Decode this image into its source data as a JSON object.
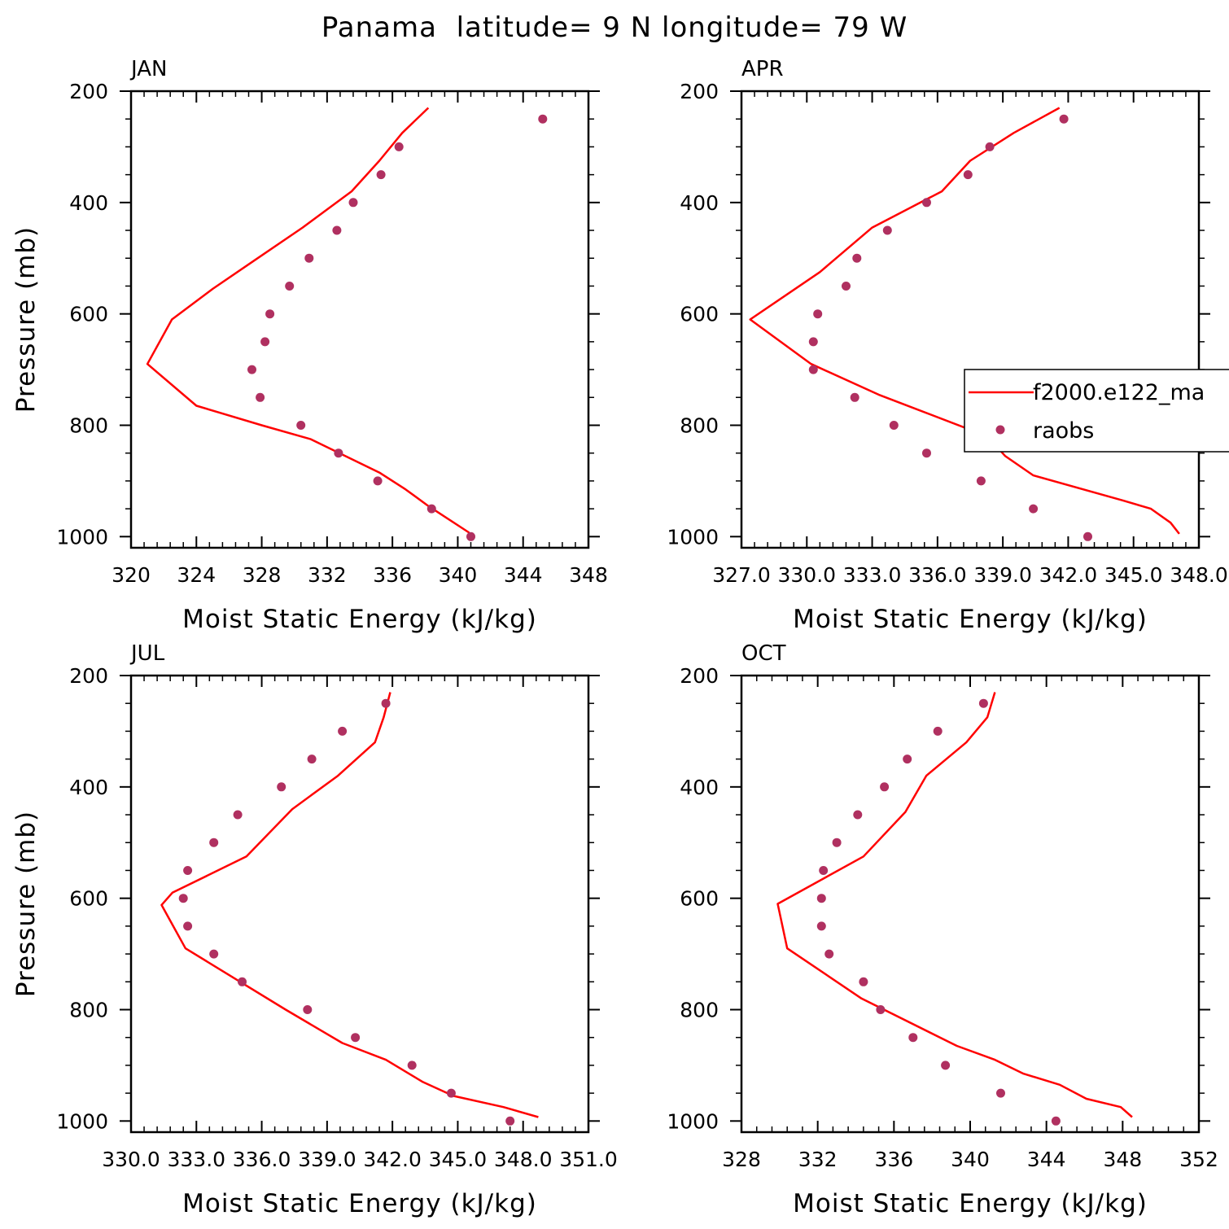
{
  "figure": {
    "title": "Panama  latitude= 9 N longitude= 79 W"
  },
  "colors": {
    "model_line": "#ff0000",
    "obs_marker": "#b03060",
    "axes": "#000000"
  },
  "legend": {
    "placement": "inside APR panel, right edge (clipped)",
    "entries": [
      {
        "label": "f2000.e122_ma",
        "kind": "line"
      },
      {
        "label": "raobs",
        "kind": "marker"
      }
    ]
  },
  "chart_data": [
    {
      "type": "line",
      "panel_title": "JAN",
      "xlabel": "Moist Static Energy (kJ/kg)",
      "ylabel": "Pressure (mb)",
      "xlim": [
        320,
        348
      ],
      "ylim": [
        1020,
        200
      ],
      "xticks": [
        320,
        324,
        328,
        332,
        336,
        340,
        344,
        348
      ],
      "xtick_labels": [
        "320",
        "324",
        "328",
        "332",
        "336",
        "340",
        "344",
        "348"
      ],
      "yticks": [
        200,
        400,
        600,
        800,
        1000
      ],
      "ytick_labels": [
        "200",
        "400",
        "600",
        "800",
        "1000"
      ],
      "series": [
        {
          "kind": "line",
          "x": [
            338.2,
            336.6,
            335.2,
            333.5,
            330.5,
            327.5,
            325.0,
            322.5,
            321.0,
            324.0,
            328.0,
            331.0,
            335.2,
            336.8,
            338.2,
            340.7
          ],
          "y": [
            230,
            275,
            325,
            380,
            445,
            505,
            555,
            610,
            690,
            765,
            800,
            825,
            885,
            915,
            945,
            993
          ]
        },
        {
          "kind": "marker",
          "x": [
            345.2,
            336.4,
            335.3,
            333.6,
            332.6,
            330.9,
            329.7,
            328.5,
            328.2,
            327.4,
            327.9,
            330.4,
            332.7,
            335.1,
            338.4,
            340.8
          ],
          "y": [
            250,
            300,
            350,
            400,
            450,
            500,
            550,
            600,
            650,
            700,
            750,
            800,
            850,
            900,
            950,
            1000
          ]
        }
      ]
    },
    {
      "type": "line",
      "panel_title": "APR",
      "xlabel": "Moist Static Energy (kJ/kg)",
      "ylabel": "",
      "xlim": [
        327,
        348
      ],
      "ylim": [
        1020,
        200
      ],
      "xticks": [
        327,
        330,
        333,
        336,
        339,
        342,
        345,
        348
      ],
      "xtick_labels": [
        "327.0",
        "330.0",
        "333.0",
        "336.0",
        "339.0",
        "342.0",
        "345.0",
        "348.0"
      ],
      "yticks": [
        200,
        400,
        600,
        800,
        1000
      ],
      "ytick_labels": [
        "200",
        "400",
        "600",
        "800",
        "1000"
      ],
      "series": [
        {
          "kind": "line",
          "x": [
            341.6,
            339.5,
            337.5,
            336.2,
            333.0,
            330.6,
            327.4,
            330.2,
            333.3,
            338.3,
            339.1,
            340.4,
            344.5,
            345.8,
            346.7,
            347.1
          ],
          "y": [
            230,
            275,
            325,
            380,
            445,
            525,
            610,
            690,
            745,
            820,
            855,
            890,
            935,
            950,
            975,
            995
          ]
        },
        {
          "kind": "marker",
          "x": [
            341.8,
            338.4,
            337.4,
            335.5,
            333.7,
            332.3,
            331.8,
            330.5,
            330.3,
            330.3,
            332.2,
            334.0,
            335.5,
            338.0,
            340.4,
            342.9
          ],
          "y": [
            250,
            300,
            350,
            400,
            450,
            500,
            550,
            600,
            650,
            700,
            750,
            800,
            850,
            900,
            950,
            1000
          ]
        }
      ]
    },
    {
      "type": "line",
      "panel_title": "JUL",
      "xlabel": "Moist Static Energy (kJ/kg)",
      "ylabel": "Pressure (mb)",
      "xlim": [
        330,
        351
      ],
      "ylim": [
        1020,
        200
      ],
      "xticks": [
        330,
        333,
        336,
        339,
        342,
        345,
        348,
        351
      ],
      "xtick_labels": [
        "330.0",
        "333.0",
        "336.0",
        "339.0",
        "342.0",
        "345.0",
        "348.0",
        "351.0"
      ],
      "yticks": [
        200,
        400,
        600,
        800,
        1000
      ],
      "ytick_labels": [
        "200",
        "400",
        "600",
        "800",
        "1000"
      ],
      "series": [
        {
          "kind": "line",
          "x": [
            341.9,
            341.6,
            341.2,
            339.5,
            337.4,
            335.3,
            331.9,
            331.4,
            332.5,
            337.1,
            339.7,
            341.7,
            343.4,
            344.8,
            347.1,
            348.7
          ],
          "y": [
            230,
            275,
            320,
            380,
            440,
            525,
            590,
            612,
            690,
            800,
            860,
            890,
            930,
            955,
            975,
            993
          ]
        },
        {
          "kind": "marker",
          "x": [
            341.7,
            339.7,
            338.3,
            336.9,
            334.9,
            333.8,
            332.6,
            332.4,
            332.6,
            333.8,
            335.1,
            338.1,
            340.3,
            342.9,
            344.7,
            347.4
          ],
          "y": [
            250,
            300,
            350,
            400,
            450,
            500,
            550,
            600,
            650,
            700,
            750,
            800,
            850,
            900,
            950,
            1000
          ]
        }
      ]
    },
    {
      "type": "line",
      "panel_title": "OCT",
      "xlabel": "Moist Static Energy (kJ/kg)",
      "ylabel": "",
      "xlim": [
        328,
        352
      ],
      "ylim": [
        1020,
        200
      ],
      "xticks": [
        328,
        332,
        336,
        340,
        344,
        348,
        352
      ],
      "xtick_labels": [
        "328",
        "332",
        "336",
        "340",
        "344",
        "348",
        "352"
      ],
      "yticks": [
        200,
        400,
        600,
        800,
        1000
      ],
      "ytick_labels": [
        "200",
        "400",
        "600",
        "800",
        "1000"
      ],
      "series": [
        {
          "kind": "line",
          "x": [
            341.3,
            340.9,
            339.8,
            337.7,
            336.6,
            334.4,
            329.9,
            330.4,
            334.3,
            339.3,
            341.3,
            342.8,
            344.7,
            346.1,
            347.9,
            348.5
          ],
          "y": [
            230,
            275,
            320,
            380,
            445,
            525,
            610,
            690,
            780,
            865,
            890,
            915,
            935,
            960,
            975,
            993
          ]
        },
        {
          "kind": "marker",
          "x": [
            340.7,
            338.3,
            336.7,
            335.5,
            334.1,
            333.0,
            332.3,
            332.2,
            332.2,
            332.6,
            334.4,
            335.3,
            337.0,
            338.7,
            341.6,
            344.5
          ],
          "y": [
            250,
            300,
            350,
            400,
            450,
            500,
            550,
            600,
            650,
            700,
            750,
            800,
            850,
            900,
            950,
            1000
          ]
        }
      ]
    }
  ]
}
